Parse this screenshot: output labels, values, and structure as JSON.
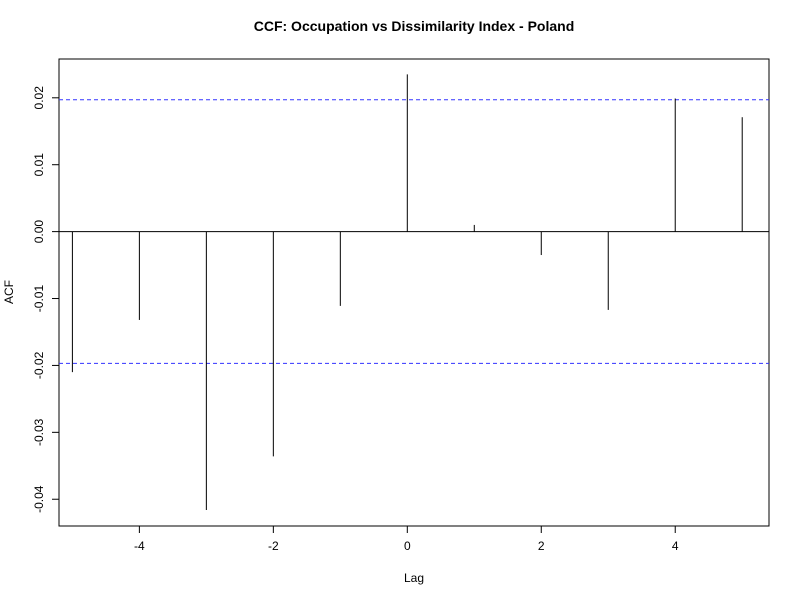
{
  "chart_data": {
    "type": "bar",
    "title": "CCF: Occupation vs Dissimilarity Index - Poland",
    "xlabel": "Lag",
    "ylabel": "ACF",
    "x": [
      -5,
      -4,
      -3,
      -2,
      -1,
      0,
      1,
      2,
      3,
      4,
      5
    ],
    "values": [
      -0.021,
      -0.0132,
      -0.0416,
      -0.0336,
      -0.0111,
      0.0235,
      0.001,
      -0.0035,
      -0.0117,
      0.0199,
      0.0171
    ],
    "confidence_band": 0.0197,
    "xlim": [
      -5.2,
      5.4
    ],
    "ylim": [
      -0.044,
      0.0258
    ],
    "x_ticks": [
      -4,
      -2,
      0,
      2,
      4
    ],
    "x_tick_labels": [
      "-4",
      "-2",
      "0",
      "2",
      "4"
    ],
    "y_ticks": [
      -0.04,
      -0.03,
      -0.02,
      -0.01,
      0.0,
      0.01,
      0.02
    ],
    "y_tick_labels": [
      "-0.04",
      "-0.03",
      "-0.02",
      "-0.01",
      "0.00",
      "0.01",
      "0.02"
    ],
    "grid": false,
    "colors": {
      "spike": "#000000",
      "band": "#3333ff",
      "axis": "#000000"
    }
  }
}
